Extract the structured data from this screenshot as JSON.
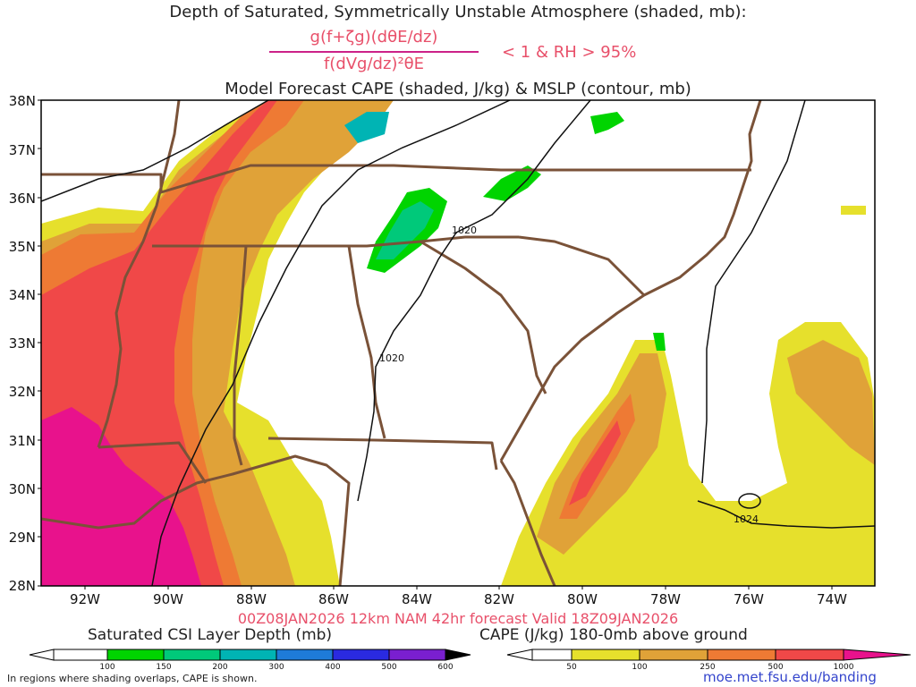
{
  "header": {
    "title_line1": "Depth of Saturated, Symmetrically Unstable Atmosphere (shaded, mb):",
    "numerator": "g(f+ζg)(dθE/dz)",
    "denominator": "f(dVg/dz)²θE",
    "condition": "< 1 & RH > 95%",
    "title_line3": "Model Forecast CAPE (shaded, J/kg) & MSLP (contour, mb)"
  },
  "axes": {
    "lat_labels": [
      "38N",
      "37N",
      "36N",
      "35N",
      "34N",
      "33N",
      "32N",
      "31N",
      "30N",
      "29N",
      "28N"
    ],
    "lon_labels": [
      "92W",
      "90W",
      "88W",
      "86W",
      "84W",
      "82W",
      "80W",
      "78W",
      "76W",
      "74W"
    ]
  },
  "contours": {
    "labels": [
      "1020",
      "1020",
      "1024"
    ]
  },
  "valid_line": "00Z08JAN2026 12km NAM 42hr forecast Valid 18Z09JAN2026",
  "legend_left": {
    "title": "Saturated CSI Layer Depth (mb)",
    "labels": [
      "100",
      "150",
      "200",
      "300",
      "400",
      "500",
      "600"
    ],
    "colors": [
      "#ffffff",
      "#00d400",
      "#00c97a",
      "#00b4b4",
      "#1e7bd8",
      "#2a2ae0",
      "#7a1fd0",
      "#000000"
    ]
  },
  "legend_right": {
    "title": "CAPE (J/kg) 180-0mb above ground",
    "labels": [
      "50",
      "100",
      "250",
      "500",
      "1000"
    ],
    "colors": [
      "#ffffff",
      "#e6e02c",
      "#e0a238",
      "#ee7a34",
      "#f04848",
      "#e8128c"
    ]
  },
  "footnote": "In regions where shading overlaps, CAPE is shown.",
  "credit": "moe.met.fsu.edu/banding",
  "colors": {
    "state_lines": "#7a5238",
    "title_accent": "#e8506a"
  }
}
